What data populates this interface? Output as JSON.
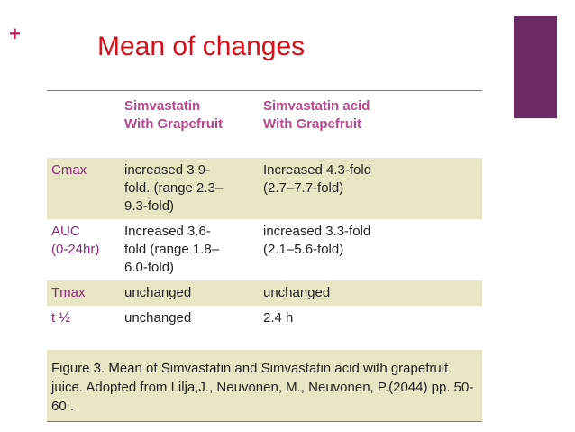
{
  "slide": {
    "plus_glyph": "+",
    "title": "Mean of changes",
    "accent_color": "#6b2a63",
    "title_color": "#d6101b"
  },
  "table": {
    "headers": [
      "",
      "Simvastatin\nWith Grapefruit",
      "Simvastatin acid\nWith Grapefruit"
    ],
    "rows": [
      [
        "Cmax",
        "increased 3.9-\nfold. (range 2.3–\n9.3-fold)",
        "Increased 4.3-fold\n(2.7–7.7-fold)"
      ],
      [
        "AUC\n(0-24hr)",
        " Increased 3.6-\nfold  (range 1.8–\n6.0-fold)",
        "increased 3.3-fold\n(2.1–5.6-fold)"
      ],
      [
        "Tmax",
        " unchanged",
        "unchanged"
      ],
      [
        "t ½",
        "unchanged",
        "2.4 h"
      ]
    ],
    "caption": "Figure 3. Mean of Simvastatin and Simvastatin acid with grapefruit juice. Adopted from Lilja,J., Neuvonen, M., Neuvonen, P.(2044) pp. 50-60 ."
  }
}
